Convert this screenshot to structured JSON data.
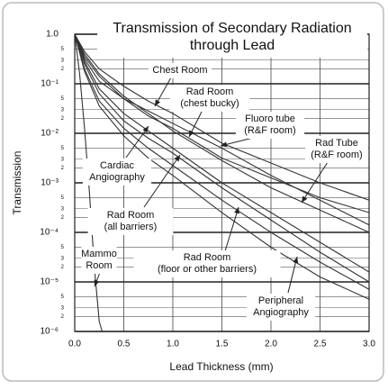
{
  "chart_data": {
    "type": "line",
    "title": [
      "Transmission of Secondary Radiation",
      "through Lead"
    ],
    "xlabel": "Lead Thickness (mm)",
    "ylabel": "Transmission",
    "yscale": "log",
    "grid": true,
    "xlim": [
      0,
      3
    ],
    "xticks": [
      {
        "value": 0,
        "label": "0.0"
      },
      {
        "value": 0.5,
        "label": "0.5"
      },
      {
        "value": 1,
        "label": "1.0"
      },
      {
        "value": 1.5,
        "label": "1.5"
      },
      {
        "value": 2,
        "label": "2.0"
      },
      {
        "value": 2.5,
        "label": "2.5"
      },
      {
        "value": 3,
        "label": "3.0"
      }
    ],
    "ylim": [
      1e-06,
      1
    ],
    "yticks": [
      {
        "value": 1,
        "label": "1.0"
      },
      {
        "value": 0.1,
        "label": "10⁻¹"
      },
      {
        "value": 0.01,
        "label": "10⁻²"
      },
      {
        "value": 0.001,
        "label": "10⁻³"
      },
      {
        "value": 0.0001,
        "label": "10⁻⁴"
      },
      {
        "value": 1e-05,
        "label": "10⁻⁵"
      },
      {
        "value": 1e-06,
        "label": "10⁻⁶"
      }
    ],
    "yminor_ticks": [
      {
        "value": 0.5,
        "label": "5"
      },
      {
        "value": 0.3,
        "label": "3"
      },
      {
        "value": 0.2,
        "label": "2"
      },
      {
        "value": 0.05,
        "label": "5"
      },
      {
        "value": 0.03,
        "label": "3"
      },
      {
        "value": 0.02,
        "label": "2"
      },
      {
        "value": 0.005,
        "label": "5"
      },
      {
        "value": 0.003,
        "label": "3"
      },
      {
        "value": 0.002,
        "label": "2"
      },
      {
        "value": 0.0005,
        "label": "5"
      },
      {
        "value": 0.0003,
        "label": "3"
      },
      {
        "value": 0.0002,
        "label": "2"
      },
      {
        "value": 5e-05,
        "label": "5"
      },
      {
        "value": 3e-05,
        "label": "3"
      },
      {
        "value": 2e-05,
        "label": "2"
      },
      {
        "value": 5e-06,
        "label": "5"
      },
      {
        "value": 3e-06,
        "label": "3"
      },
      {
        "value": 2e-06,
        "label": "2"
      }
    ],
    "x": [
      0,
      0.1,
      0.25,
      0.5,
      0.75,
      1,
      1.5,
      2,
      2.5,
      3
    ],
    "color": "#333333",
    "series": [
      {
        "values": [
          1,
          0.447,
          0.2,
          0.0891,
          0.0447,
          0.0251,
          0.00631,
          0.00251,
          0.001,
          0.000447
        ]
      },
      {
        "values": [
          1,
          0.355,
          0.141,
          0.0501,
          0.0224,
          0.0126,
          0.00316,
          0.00126,
          0.000501,
          0.000251
        ]
      },
      {
        "values": [
          1,
          0.316,
          0.112,
          0.0501,
          0.0282,
          0.0158,
          0.00501,
          0.00141,
          0.000447,
          0.000141
        ]
      },
      {
        "values": [
          1,
          0.398,
          0.158,
          0.0562,
          0.0251,
          0.0112,
          0.00282,
          0.000794,
          0.000282,
          0.0001
        ]
      },
      {
        "values": [
          1,
          0.282,
          0.0794,
          0.0251,
          0.0112,
          0.00501,
          0.001,
          0.000251,
          6.31e-05,
          1.58e-05
        ]
      },
      {
        "values": [
          1,
          0.251,
          0.0631,
          0.0178,
          0.00794,
          0.00398,
          0.000794,
          0.000178,
          3.98e-05,
          1e-05
        ]
      },
      {
        "values": [
          1,
          0.2,
          0.0447,
          0.0126,
          0.00501,
          0.00224,
          0.000447,
          0.0001,
          2.51e-05,
          7.08e-06
        ]
      },
      {
        "values": [
          1,
          0.178,
          0.0355,
          0.00891,
          0.00316,
          0.00141,
          0.000251,
          5.01e-05,
          1.26e-05,
          4.47e-06
        ]
      },
      {
        "x": [
          0,
          0.05,
          0.1,
          0.15,
          0.2,
          0.25,
          0.28
        ],
        "values": [
          1,
          0.158,
          0.0126,
          0.000631,
          2e-05,
          1.58e-06,
          1e-06
        ]
      }
    ],
    "annotations": [
      [
        "Chest Room"
      ],
      [
        "Rad Room",
        "(chest bucky)"
      ],
      [
        "Fluoro tube",
        "(R&F room)"
      ],
      [
        "Rad Tube",
        "(R&F room)"
      ],
      [
        "Cardiac",
        "Angiography"
      ],
      [
        "Rad Room",
        "(all barriers)"
      ],
      [
        "Rad Room",
        "(floor or other barriers)"
      ],
      [
        "Peripheral",
        "Angiography"
      ],
      [
        "Mammo",
        "Room"
      ]
    ]
  }
}
